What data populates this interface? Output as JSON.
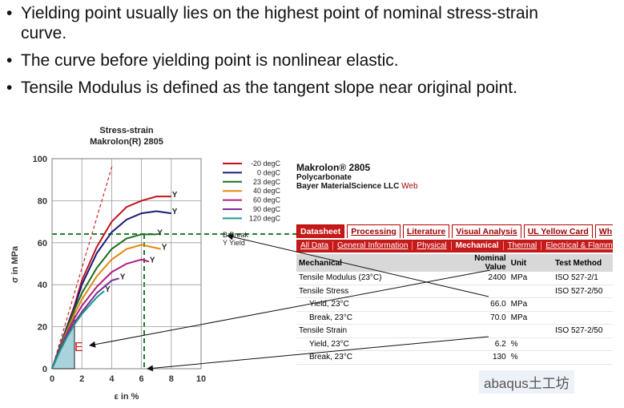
{
  "bullets": [
    "Yielding point usually lies on the highest point of nominal stress-strain curve.",
    "The curve before yielding point is nonlinear elastic.",
    "Tensile Modulus is defined as the tangent slope near original point."
  ],
  "chart_data": {
    "type": "line",
    "title": [
      "Stress-strain",
      "Makrolon(R) 2805"
    ],
    "xlabel": "ε in %",
    "ylabel": "σ in MPa",
    "xlim": [
      0,
      10
    ],
    "ylim": [
      0,
      100
    ],
    "xticks": [
      0,
      2,
      4,
      6,
      8,
      10
    ],
    "yticks": [
      0,
      20,
      40,
      60,
      80,
      100
    ],
    "grid": true,
    "series": [
      {
        "name": "-20 degC",
        "color": "#c0141c",
        "end_label": "Y",
        "x": [
          0,
          0.5,
          1,
          1.5,
          2,
          3,
          4,
          5,
          6,
          7,
          8
        ],
        "values": [
          0,
          10,
          20,
          30,
          42,
          58,
          70,
          77,
          80,
          82,
          82
        ]
      },
      {
        "name": "0 degC",
        "color": "#1a1a7a",
        "end_label": "Y",
        "x": [
          0,
          0.5,
          1,
          1.5,
          2,
          3,
          4,
          5,
          6,
          7,
          8
        ],
        "values": [
          0,
          10,
          20,
          29,
          40,
          55,
          65,
          71,
          74,
          75,
          74
        ]
      },
      {
        "name": "23 degC",
        "color": "#1e6e1e",
        "end_label": "Y",
        "x": [
          0,
          0.5,
          1,
          1.5,
          2,
          3,
          4,
          5,
          6,
          7
        ],
        "values": [
          0,
          10,
          19,
          28,
          36,
          48,
          57,
          62,
          64,
          64
        ]
      },
      {
        "name": "40 degC",
        "color": "#e08a10",
        "end_label": "Y",
        "x": [
          0,
          0.5,
          1,
          1.5,
          2,
          3,
          4,
          5,
          6,
          7.3
        ],
        "values": [
          0,
          9,
          18,
          26,
          33,
          44,
          52,
          57,
          59,
          57
        ]
      },
      {
        "name": "60 degC",
        "color": "#b0207a",
        "end_label": "Y",
        "x": [
          0,
          0.5,
          1,
          1.5,
          2,
          3,
          4,
          5,
          6,
          6.5
        ],
        "values": [
          0,
          9,
          17,
          24,
          30,
          39,
          46,
          50,
          52,
          51
        ]
      },
      {
        "name": "90 degC",
        "color": "#7a2a9a",
        "end_label": "Y",
        "x": [
          0,
          0.5,
          1,
          1.5,
          2,
          3,
          4,
          4.5
        ],
        "values": [
          0,
          9,
          16,
          22,
          27,
          36,
          42,
          43
        ]
      },
      {
        "name": "120 degC",
        "color": "#1a9a8a",
        "end_label": "Y",
        "x": [
          0,
          0.5,
          1,
          1.5,
          2,
          3,
          3.5
        ],
        "values": [
          0,
          8,
          15,
          21,
          26,
          34,
          37
        ]
      }
    ],
    "marker_legend": [
      "B Break",
      "Y Yield"
    ],
    "annotation_label": "E"
  },
  "datasheet": {
    "title": "Makrolon® 2805",
    "material": "Polycarbonate",
    "company": "Bayer MaterialScience LLC",
    "link": "Web",
    "tabs": [
      "Datasheet",
      "Processing",
      "Literature",
      "Visual Analysis",
      "UL Yellow Card",
      "Wh"
    ],
    "subtabs": [
      "All Data",
      "General Information",
      "Physical",
      "Mechanical",
      "Thermal",
      "Electrical & Flammat"
    ],
    "columns": [
      "Mechanical",
      "Nominal Value",
      "Unit",
      "Test Method"
    ],
    "rows": [
      {
        "label": "Tensile Modulus (23°C)",
        "value": "2400",
        "unit": "MPa",
        "method": "ISO 527-2/1"
      },
      {
        "label": "Tensile Stress",
        "method": "ISO 527-2/50"
      },
      {
        "label": "Yield, 23°C",
        "value": "66.0",
        "unit": "MPa",
        "indent": true
      },
      {
        "label": "Break, 23°C",
        "value": "70.0",
        "unit": "MPa",
        "indent": true
      },
      {
        "label": "Tensile Strain",
        "method": "ISO 527-2/50"
      },
      {
        "label": "Yield, 23°C",
        "value": "6.2",
        "unit": "%",
        "indent": true
      },
      {
        "label": "Break, 23°C",
        "value": "130",
        "unit": "%",
        "indent": true
      }
    ]
  },
  "watermark": "abaqus土工坊"
}
